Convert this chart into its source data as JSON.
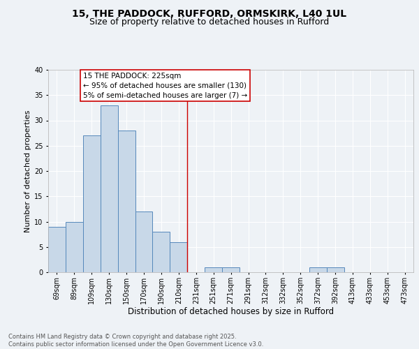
{
  "title1": "15, THE PADDOCK, RUFFORD, ORMSKIRK, L40 1UL",
  "title2": "Size of property relative to detached houses in Rufford",
  "xlabel": "Distribution of detached houses by size in Rufford",
  "ylabel": "Number of detached properties",
  "bins": [
    "69sqm",
    "89sqm",
    "109sqm",
    "130sqm",
    "150sqm",
    "170sqm",
    "190sqm",
    "210sqm",
    "231sqm",
    "251sqm",
    "271sqm",
    "291sqm",
    "312sqm",
    "332sqm",
    "352sqm",
    "372sqm",
    "392sqm",
    "413sqm",
    "433sqm",
    "453sqm",
    "473sqm"
  ],
  "counts": [
    9,
    10,
    27,
    33,
    28,
    12,
    8,
    6,
    0,
    1,
    1,
    0,
    0,
    0,
    0,
    1,
    1,
    0,
    0,
    0,
    0
  ],
  "bar_color": "#c8d8e8",
  "bar_edge_color": "#5588bb",
  "property_line_color": "#cc0000",
  "annotation_text": "15 THE PADDOCK: 225sqm\n← 95% of detached houses are smaller (130)\n5% of semi-detached houses are larger (7) →",
  "annotation_box_color": "#ffffff",
  "annotation_box_edge_color": "#cc0000",
  "ylim": [
    0,
    40
  ],
  "yticks": [
    0,
    5,
    10,
    15,
    20,
    25,
    30,
    35,
    40
  ],
  "bg_color": "#eef2f6",
  "grid_color": "#ffffff",
  "footer_text": "Contains HM Land Registry data © Crown copyright and database right 2025.\nContains public sector information licensed under the Open Government Licence v3.0.",
  "title1_fontsize": 10,
  "title2_fontsize": 9,
  "xlabel_fontsize": 8.5,
  "ylabel_fontsize": 8,
  "tick_fontsize": 7,
  "annotation_fontsize": 7.5,
  "footer_fontsize": 6
}
